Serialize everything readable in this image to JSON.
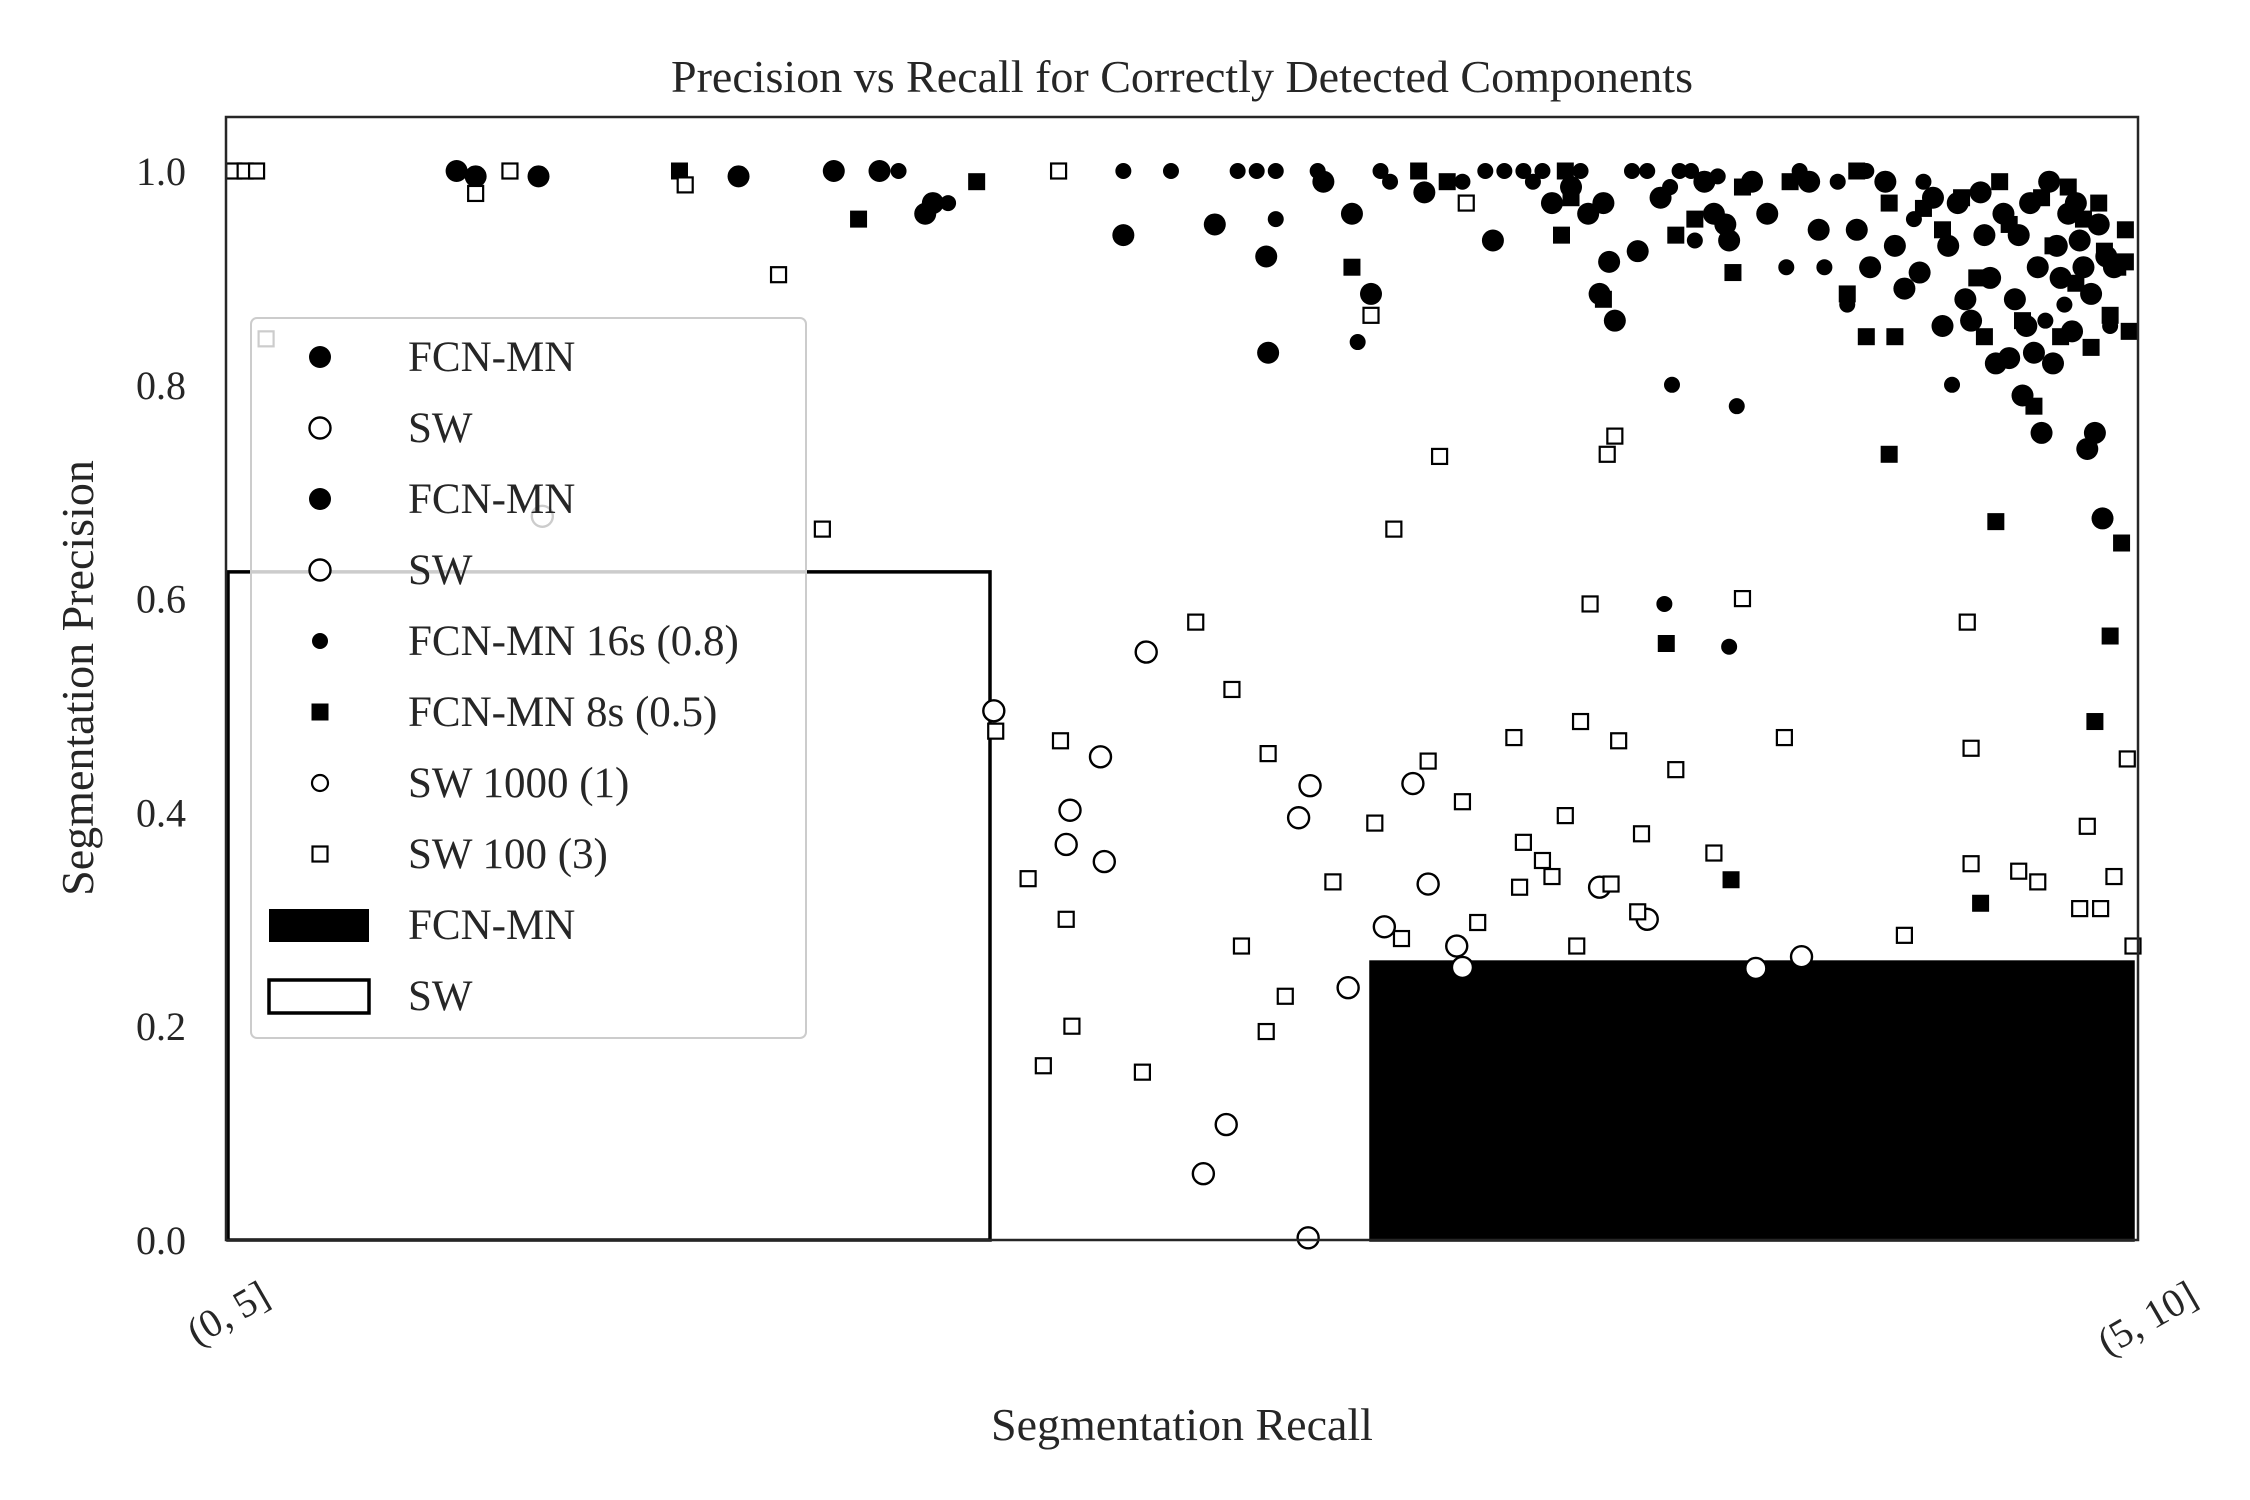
{
  "chart_data": {
    "type": "scatter",
    "title": "Precision vs Recall for Correctly Detected Components",
    "xlabel": "Segmentation Recall",
    "ylabel": "Segmentation Precision",
    "ylim": [
      0,
      1.05
    ],
    "yticks": [
      "0.0",
      "0.2",
      "0.4",
      "0.6",
      "0.8",
      "1.0"
    ],
    "x_tick_labels": [
      "(0, 5]",
      "(5, 10]"
    ],
    "grid": false,
    "legend_position": "left",
    "legend": [
      {
        "label": "FCN-MN",
        "marker": "circle-filled-large"
      },
      {
        "label": "SW",
        "marker": "circle-open-large"
      },
      {
        "label": "FCN-MN",
        "marker": "circle-filled-large"
      },
      {
        "label": "SW",
        "marker": "circle-open-large"
      },
      {
        "label": "FCN-MN 16s (0.8)",
        "marker": "circle-filled-small"
      },
      {
        "label": "FCN-MN 8s (0.5)",
        "marker": "square-filled"
      },
      {
        "label": "SW 1000 (1)",
        "marker": "circle-open-small"
      },
      {
        "label": "SW 100 (3)",
        "marker": "square-open"
      },
      {
        "label": "FCN-MN",
        "marker": "bar-filled"
      },
      {
        "label": "SW",
        "marker": "bar-open"
      }
    ],
    "bars": [
      {
        "name": "SW",
        "x_range": [
          0.0,
          0.4
        ],
        "value": 0.625,
        "fill": "#ffffff",
        "edge": "#000000"
      },
      {
        "name": "FCN-MN",
        "x_range": [
          0.6,
          1.0
        ],
        "value": 0.26,
        "fill": "#000000",
        "edge": "#000000"
      }
    ],
    "series": [
      {
        "name": "FCN-MN 16s (0.8)",
        "marker": "circle-filled",
        "points": [
          [
            0.12,
            1.0,
            1
          ],
          [
            0.13,
            0.995,
            1
          ],
          [
            0.163,
            0.995,
            1
          ],
          [
            0.268,
            0.995,
            1
          ],
          [
            0.318,
            1.0,
            1
          ],
          [
            0.342,
            1.0,
            1
          ],
          [
            0.352,
            1.0,
            0
          ],
          [
            0.366,
            0.96,
            1
          ],
          [
            0.37,
            0.97,
            1
          ],
          [
            0.378,
            0.97,
            0
          ],
          [
            0.47,
            1.0,
            0
          ],
          [
            0.47,
            0.94,
            1
          ],
          [
            0.495,
            1.0,
            0
          ],
          [
            0.518,
            0.95,
            1
          ],
          [
            0.53,
            1.0,
            0
          ],
          [
            0.54,
            1.0,
            0
          ],
          [
            0.545,
            0.92,
            1
          ],
          [
            0.546,
            0.83,
            1
          ],
          [
            0.55,
            1.0,
            0
          ],
          [
            0.55,
            0.955,
            0
          ],
          [
            0.572,
            1.0,
            0
          ],
          [
            0.575,
            0.99,
            1
          ],
          [
            0.59,
            0.96,
            1
          ],
          [
            0.593,
            0.84,
            0
          ],
          [
            0.6,
            0.885,
            1
          ],
          [
            0.605,
            1.0,
            0
          ],
          [
            0.61,
            0.99,
            0
          ],
          [
            0.628,
            0.98,
            1
          ],
          [
            0.648,
            0.99,
            0
          ],
          [
            0.66,
            1.0,
            0
          ],
          [
            0.664,
            0.935,
            1
          ],
          [
            0.67,
            1.0,
            0
          ],
          [
            0.68,
            1.0,
            0
          ],
          [
            0.685,
            0.99,
            0
          ],
          [
            0.69,
            1.0,
            0
          ],
          [
            0.695,
            0.97,
            1
          ],
          [
            0.705,
            0.985,
            1
          ],
          [
            0.71,
            1.0,
            0
          ],
          [
            0.714,
            0.96,
            1
          ],
          [
            0.72,
            0.885,
            1
          ],
          [
            0.722,
            0.97,
            1
          ],
          [
            0.725,
            0.915,
            1
          ],
          [
            0.728,
            0.86,
            1
          ],
          [
            0.737,
            1.0,
            0
          ],
          [
            0.74,
            0.925,
            1
          ],
          [
            0.745,
            1.0,
            0
          ],
          [
            0.752,
            0.975,
            1
          ],
          [
            0.757,
            0.985,
            0
          ],
          [
            0.758,
            0.8,
            0
          ],
          [
            0.762,
            1.0,
            0
          ],
          [
            0.768,
            1.0,
            0
          ],
          [
            0.77,
            0.935,
            0
          ],
          [
            0.775,
            0.99,
            1
          ],
          [
            0.78,
            0.96,
            1
          ],
          [
            0.782,
            0.995,
            0
          ],
          [
            0.786,
            0.95,
            1
          ],
          [
            0.788,
            0.935,
            1
          ],
          [
            0.792,
            0.78,
            0
          ],
          [
            0.8,
            0.99,
            1
          ],
          [
            0.808,
            0.96,
            1
          ],
          [
            0.818,
            0.91,
            0
          ],
          [
            0.825,
            1.0,
            0
          ],
          [
            0.83,
            0.99,
            1
          ],
          [
            0.835,
            0.945,
            1
          ],
          [
            0.838,
            0.91,
            0
          ],
          [
            0.845,
            0.99,
            0
          ],
          [
            0.85,
            0.875,
            0
          ],
          [
            0.855,
            0.945,
            1
          ],
          [
            0.86,
            1.0,
            0
          ],
          [
            0.862,
            0.91,
            1
          ],
          [
            0.87,
            0.99,
            1
          ],
          [
            0.875,
            0.93,
            1
          ],
          [
            0.88,
            0.89,
            1
          ],
          [
            0.885,
            0.955,
            0
          ],
          [
            0.888,
            0.905,
            1
          ],
          [
            0.89,
            0.99,
            0
          ],
          [
            0.895,
            0.975,
            1
          ],
          [
            0.9,
            0.855,
            1
          ],
          [
            0.903,
            0.93,
            1
          ],
          [
            0.905,
            0.8,
            0
          ],
          [
            0.908,
            0.97,
            1
          ],
          [
            0.912,
            0.88,
            1
          ],
          [
            0.915,
            0.86,
            1
          ],
          [
            0.92,
            0.98,
            1
          ],
          [
            0.922,
            0.94,
            1
          ],
          [
            0.925,
            0.9,
            1
          ],
          [
            0.928,
            0.82,
            1
          ],
          [
            0.93,
            0.99,
            0
          ],
          [
            0.932,
            0.96,
            1
          ],
          [
            0.935,
            0.825,
            1
          ],
          [
            0.938,
            0.88,
            1
          ],
          [
            0.94,
            0.94,
            1
          ],
          [
            0.942,
            0.79,
            1
          ],
          [
            0.944,
            0.855,
            1
          ],
          [
            0.946,
            0.97,
            1
          ],
          [
            0.948,
            0.83,
            1
          ],
          [
            0.95,
            0.91,
            1
          ],
          [
            0.952,
            0.755,
            1
          ],
          [
            0.954,
            0.86,
            0
          ],
          [
            0.956,
            0.99,
            1
          ],
          [
            0.958,
            0.82,
            1
          ],
          [
            0.96,
            0.93,
            1
          ],
          [
            0.962,
            0.9,
            1
          ],
          [
            0.964,
            0.875,
            0
          ],
          [
            0.966,
            0.96,
            1
          ],
          [
            0.968,
            0.85,
            1
          ],
          [
            0.97,
            0.97,
            1
          ],
          [
            0.972,
            0.935,
            1
          ],
          [
            0.974,
            0.91,
            1
          ],
          [
            0.976,
            0.74,
            1
          ],
          [
            0.978,
            0.885,
            1
          ],
          [
            0.98,
            0.755,
            1
          ],
          [
            0.982,
            0.95,
            1
          ],
          [
            0.984,
            0.675,
            1
          ],
          [
            0.986,
            0.92,
            1
          ],
          [
            0.988,
            0.855,
            0
          ],
          [
            0.99,
            0.91,
            1
          ],
          [
            0.754,
            0.595,
            0
          ],
          [
            0.788,
            0.555,
            0
          ]
        ]
      },
      {
        "name": "FCN-MN 8s (0.5)",
        "marker": "square-filled",
        "points": [
          [
            0.237,
            1.0
          ],
          [
            0.331,
            0.955
          ],
          [
            0.393,
            0.99
          ],
          [
            0.59,
            0.91
          ],
          [
            0.625,
            1.0
          ],
          [
            0.64,
            0.99
          ],
          [
            0.7,
            0.94
          ],
          [
            0.702,
            1.0
          ],
          [
            0.705,
            0.975
          ],
          [
            0.722,
            0.88
          ],
          [
            0.76,
            0.94
          ],
          [
            0.77,
            0.955
          ],
          [
            0.79,
            0.905
          ],
          [
            0.795,
            0.985
          ],
          [
            0.82,
            0.99
          ],
          [
            0.85,
            0.885
          ],
          [
            0.855,
            1.0
          ],
          [
            0.86,
            0.845
          ],
          [
            0.875,
            0.845
          ],
          [
            0.872,
            0.97
          ],
          [
            0.89,
            0.965
          ],
          [
            0.9,
            0.945
          ],
          [
            0.91,
            0.975
          ],
          [
            0.918,
            0.9
          ],
          [
            0.922,
            0.845
          ],
          [
            0.93,
            0.99
          ],
          [
            0.935,
            0.95
          ],
          [
            0.942,
            0.86
          ],
          [
            0.948,
            0.78
          ],
          [
            0.952,
            0.975
          ],
          [
            0.958,
            0.93
          ],
          [
            0.962,
            0.845
          ],
          [
            0.966,
            0.985
          ],
          [
            0.97,
            0.895
          ],
          [
            0.974,
            0.955
          ],
          [
            0.978,
            0.835
          ],
          [
            0.982,
            0.97
          ],
          [
            0.985,
            0.925
          ],
          [
            0.988,
            0.865
          ],
          [
            0.992,
            0.91
          ],
          [
            0.996,
            0.945
          ],
          [
            0.998,
            0.85
          ],
          [
            0.872,
            0.735
          ],
          [
            0.928,
            0.672
          ],
          [
            0.994,
            0.652
          ],
          [
            0.988,
            0.565
          ],
          [
            0.98,
            0.485
          ],
          [
            0.755,
            0.558
          ],
          [
            0.789,
            0.337
          ],
          [
            0.92,
            0.315
          ],
          [
            0.996,
            0.915
          ]
        ]
      },
      {
        "name": "SW 1000 (1)",
        "marker": "circle-open",
        "points": [
          [
            0.165,
            0.677
          ],
          [
            0.402,
            0.495
          ],
          [
            0.44,
            0.37
          ],
          [
            0.442,
            0.402
          ],
          [
            0.458,
            0.452
          ],
          [
            0.46,
            0.354
          ],
          [
            0.482,
            0.55
          ],
          [
            0.524,
            0.108
          ],
          [
            0.512,
            0.062
          ],
          [
            0.562,
            0.395
          ],
          [
            0.568,
            0.425
          ],
          [
            0.567,
            0.002
          ],
          [
            0.588,
            0.236
          ],
          [
            0.607,
            0.293
          ],
          [
            0.622,
            0.427
          ],
          [
            0.63,
            0.333
          ],
          [
            0.645,
            0.275
          ],
          [
            0.648,
            0.255
          ],
          [
            0.72,
            0.33
          ],
          [
            0.745,
            0.3
          ],
          [
            0.802,
            0.254
          ],
          [
            0.826,
            0.265
          ]
        ]
      },
      {
        "name": "SW 100 (3)",
        "marker": "square-open",
        "points": [
          [
            0.003,
            1.0
          ],
          [
            0.009,
            1.0
          ],
          [
            0.015,
            1.0
          ],
          [
            0.02,
            0.843
          ],
          [
            0.13,
            0.979
          ],
          [
            0.148,
            1.0
          ],
          [
            0.24,
            0.987
          ],
          [
            0.289,
            0.903
          ],
          [
            0.312,
            0.665
          ],
          [
            0.403,
            0.476
          ],
          [
            0.428,
            0.163
          ],
          [
            0.42,
            0.338
          ],
          [
            0.437,
            0.467
          ],
          [
            0.44,
            0.3
          ],
          [
            0.443,
            0.2
          ],
          [
            0.436,
            1.0
          ],
          [
            0.48,
            0.157
          ],
          [
            0.508,
            0.578
          ],
          [
            0.527,
            0.515
          ],
          [
            0.532,
            0.275
          ],
          [
            0.545,
            0.195
          ],
          [
            0.546,
            0.455
          ],
          [
            0.555,
            0.228
          ],
          [
            0.58,
            0.335
          ],
          [
            0.6,
            0.865
          ],
          [
            0.602,
            0.39
          ],
          [
            0.612,
            0.665
          ],
          [
            0.616,
            0.282
          ],
          [
            0.63,
            0.448
          ],
          [
            0.636,
            0.733
          ],
          [
            0.648,
            0.41
          ],
          [
            0.65,
            0.97
          ],
          [
            0.656,
            0.297
          ],
          [
            0.675,
            0.47
          ],
          [
            0.678,
            0.33
          ],
          [
            0.68,
            0.372
          ],
          [
            0.69,
            0.355
          ],
          [
            0.695,
            0.34
          ],
          [
            0.702,
            0.397
          ],
          [
            0.708,
            0.275
          ],
          [
            0.71,
            0.485
          ],
          [
            0.715,
            0.595
          ],
          [
            0.724,
            0.735
          ],
          [
            0.728,
            0.752
          ],
          [
            0.726,
            0.333
          ],
          [
            0.73,
            0.467
          ],
          [
            0.74,
            0.307
          ],
          [
            0.742,
            0.38
          ],
          [
            0.76,
            0.44
          ],
          [
            0.78,
            0.362
          ],
          [
            0.795,
            0.6
          ],
          [
            0.817,
            0.47
          ],
          [
            0.88,
            0.285
          ],
          [
            0.913,
            0.578
          ],
          [
            0.915,
            0.46
          ],
          [
            0.915,
            0.352
          ],
          [
            0.94,
            0.345
          ],
          [
            0.95,
            0.335
          ],
          [
            0.972,
            0.31
          ],
          [
            0.976,
            0.387
          ],
          [
            0.983,
            0.31
          ],
          [
            0.99,
            0.34
          ],
          [
            0.997,
            0.45
          ],
          [
            1.0,
            0.275
          ]
        ]
      }
    ]
  }
}
